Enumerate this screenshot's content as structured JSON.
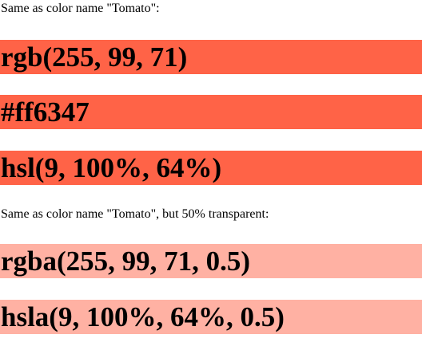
{
  "solid_section": {
    "intro": "Same as color name \"Tomato\":",
    "swatches": [
      {
        "label": "rgb(255, 99, 71)",
        "color": "#ff6347"
      },
      {
        "label": "#ff6347",
        "color": "#ff6347"
      },
      {
        "label": "hsl(9, 100%, 64%)",
        "color": "#ff6347"
      }
    ]
  },
  "transparent_section": {
    "intro": "Same as color name \"Tomato\", but 50% transparent:",
    "swatches": [
      {
        "label": "rgba(255, 99, 71, 0.5)",
        "color": "rgba(255, 99, 71, 0.5)"
      },
      {
        "label": "hsla(9, 100%, 64%, 0.5)",
        "color": "rgba(255, 99, 71, 0.5)"
      }
    ]
  }
}
